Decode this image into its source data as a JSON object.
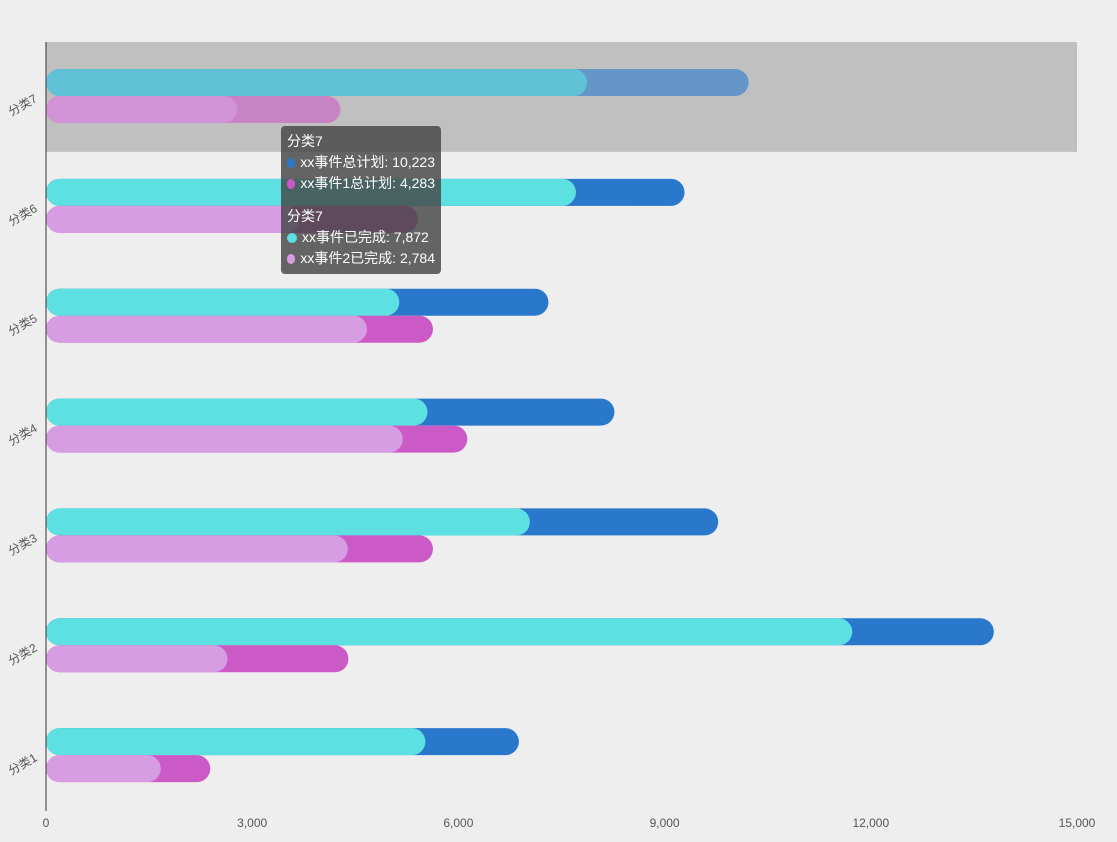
{
  "chart_data": {
    "type": "bar",
    "orientation": "horizontal",
    "categories": [
      "分类1",
      "分类2",
      "分类3",
      "分类4",
      "分类5",
      "分类6",
      "分类7"
    ],
    "series": [
      {
        "name": "xx事件总计划",
        "color": "#2a78cc",
        "values": [
          6880,
          13790,
          9780,
          8270,
          7310,
          9290,
          10223
        ]
      },
      {
        "name": "xx事件已完成",
        "color": "#5ce0e1",
        "values": [
          5520,
          11730,
          7040,
          5550,
          5140,
          7710,
          7872
        ]
      },
      {
        "name": "xx事件1总计划",
        "color": "#cc5ac6",
        "values": [
          2390,
          4400,
          5630,
          6130,
          5630,
          5410,
          4283
        ]
      },
      {
        "name": "xx事件2已完成",
        "color": "#d79de2",
        "values": [
          1670,
          2640,
          4390,
          5190,
          4670,
          3690,
          2784
        ]
      }
    ],
    "xlim": [
      0,
      15000
    ],
    "xticks": [
      "0",
      "3,000",
      "6,000",
      "9,000",
      "12,000",
      "15,000"
    ],
    "highlighted_category": "分类7",
    "title": "",
    "xlabel": "",
    "ylabel": ""
  },
  "tooltip": {
    "group1": {
      "title": "分类7",
      "rows": [
        {
          "label": "xx事件总计划: 10,223",
          "color": "#2a78cc"
        },
        {
          "label": "xx事件1总计划: 4,283",
          "color": "#cc5ac6"
        }
      ]
    },
    "group2": {
      "title": "分类7",
      "rows": [
        {
          "label": "xx事件已完成: 7,872",
          "color": "#5ce0e1"
        },
        {
          "label": "xx事件2已完成: 2,784",
          "color": "#d79de2"
        }
      ]
    }
  }
}
